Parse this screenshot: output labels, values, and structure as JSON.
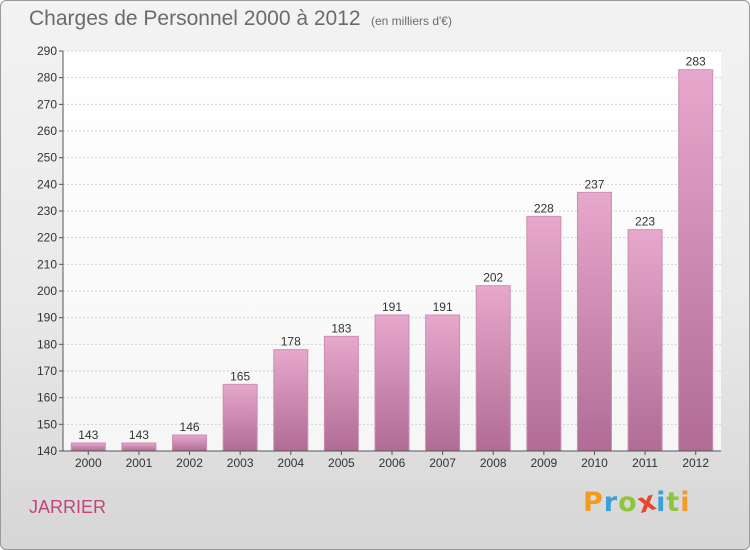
{
  "title": "Charges de Personnel 2000 à 2012",
  "subtitle": "(en milliers d'€)",
  "town": "JARRIER",
  "logo": {
    "letters": [
      "P",
      "r",
      "o",
      "x",
      "i",
      "t",
      "i"
    ],
    "colors": [
      "#f39a1f",
      "#3aa0d8",
      "#8cc63f",
      "#e8462a",
      "#3aa0d8",
      "#8cc63f",
      "#f39a1f"
    ]
  },
  "colors": {
    "bar_top": "#e7a8cc",
    "bar_bottom": "#b06c95",
    "town_color": "#c2457a"
  },
  "chart_data": {
    "type": "bar",
    "title": "Charges de Personnel 2000 à 2012",
    "subtitle": "(en milliers d'€)",
    "categories": [
      "2000",
      "2001",
      "2002",
      "2003",
      "2004",
      "2005",
      "2006",
      "2007",
      "2008",
      "2009",
      "2010",
      "2011",
      "2012"
    ],
    "values": [
      143,
      143,
      146,
      165,
      178,
      183,
      191,
      191,
      202,
      228,
      237,
      223,
      283
    ],
    "ylim": [
      140,
      290
    ],
    "yticks": [
      140,
      150,
      160,
      170,
      180,
      190,
      200,
      210,
      220,
      230,
      240,
      250,
      260,
      270,
      280,
      290
    ],
    "grid": true,
    "xlabel": "",
    "ylabel": ""
  }
}
